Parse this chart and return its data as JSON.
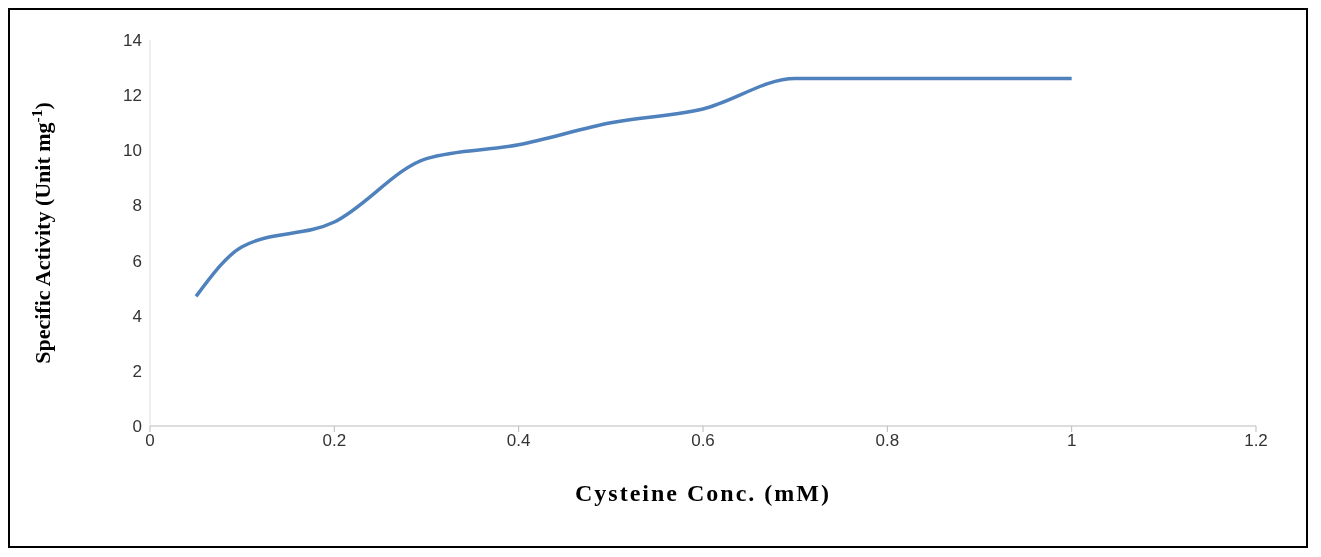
{
  "chart_data": {
    "type": "line",
    "xlabel": "Cysteine Conc. (mM)",
    "ylabel": "Specific Activity (Unit mg$^{-1}$)",
    "x": [
      0.05,
      0.1,
      0.2,
      0.3,
      0.4,
      0.5,
      0.6,
      0.7,
      0.8,
      0.9,
      1.0
    ],
    "series": [
      {
        "color": "#4f81bd",
        "values": [
          4.7,
          6.5,
          7.4,
          9.7,
          10.2,
          11.0,
          11.5,
          12.6,
          12.6,
          12.6,
          12.6
        ]
      }
    ],
    "xlim": [
      0,
      1.2
    ],
    "xticks": [
      0,
      0.2,
      0.4,
      0.6,
      0.8,
      1,
      1.2
    ],
    "ylim": [
      0,
      14
    ],
    "yticks": [
      0,
      2,
      4,
      6,
      8,
      10,
      12,
      14
    ],
    "grid": false,
    "legend": false,
    "marker": "none",
    "line_style": "solid"
  }
}
